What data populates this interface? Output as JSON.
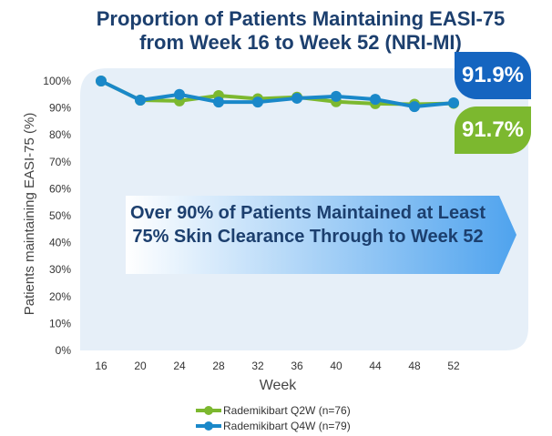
{
  "title_line1": "Proportion of Patients Maintaining EASI-75",
  "title_line2": "from Week 16 to Week 52 (NRI-MI)",
  "callout_q4w": "91.9%",
  "callout_q2w": "91.7%",
  "banner": "Over 90% of Patients Maintained at Least 75% Skin Clearance Through to Week 52",
  "colors": {
    "q2w": "#7cb82f",
    "q4w": "#1a88c9",
    "title": "#1c3f6e"
  },
  "chart_data": {
    "type": "line",
    "xlabel": "Week",
    "ylabel": "Patients maintaining EASI-75 (%)",
    "x": [
      16,
      20,
      24,
      28,
      32,
      36,
      40,
      44,
      48,
      52
    ],
    "ylim": [
      0,
      100
    ],
    "yticks": [
      "0%",
      "10%",
      "20%",
      "30%",
      "40%",
      "50%",
      "60%",
      "70%",
      "80%",
      "90%",
      "100%"
    ],
    "series": [
      {
        "name": "Rademikibart Q2W (n=76)",
        "values": [
          100,
          92.9,
          92.6,
          94.6,
          93.4,
          94.0,
          92.3,
          91.6,
          91.4,
          91.7
        ]
      },
      {
        "name": "Rademikibart Q4W (n=79)",
        "values": [
          100,
          92.9,
          95.0,
          92.2,
          92.2,
          93.6,
          94.3,
          93.2,
          90.5,
          91.9
        ]
      }
    ]
  }
}
